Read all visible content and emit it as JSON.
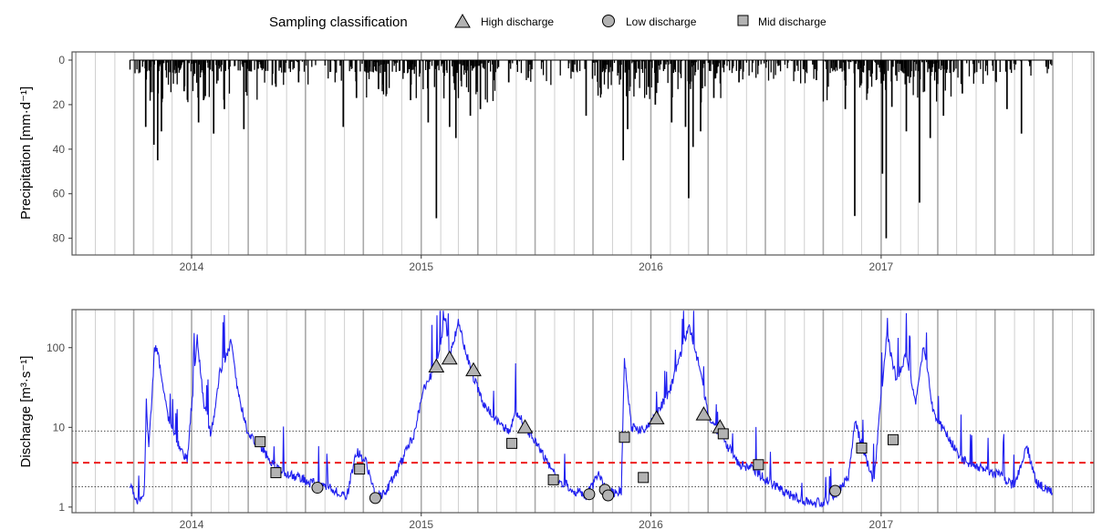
{
  "legend": {
    "title": "Sampling classification",
    "items": [
      {
        "label": "High discharge",
        "shape": "triangle"
      },
      {
        "label": "Low discharge",
        "shape": "circle"
      },
      {
        "label": "Mid discharge",
        "shape": "square"
      }
    ]
  },
  "chart_data": [
    {
      "type": "bar",
      "ylabel": "Precipitation [mm·d⁻¹]",
      "y_reversed": true,
      "ylim": [
        0,
        83
      ],
      "yticks": [
        0,
        20,
        40,
        60,
        80
      ],
      "xlim": [
        "2013-06-25",
        "2017-12-05"
      ],
      "xticks": [
        {
          "date": "2014-01-01",
          "label": "2014"
        },
        {
          "date": "2015-01-01",
          "label": "2015"
        },
        {
          "date": "2016-01-01",
          "label": "2016"
        },
        {
          "date": "2017-01-01",
          "label": "2017"
        }
      ],
      "data_range": [
        "2013-09-25",
        "2017-09-30"
      ],
      "peaks": [
        {
          "date": "2013-10-20",
          "value": 30
        },
        {
          "date": "2013-11-02",
          "value": 38
        },
        {
          "date": "2013-11-08",
          "value": 45
        },
        {
          "date": "2013-11-14",
          "value": 32
        },
        {
          "date": "2013-12-20",
          "value": 14
        },
        {
          "date": "2014-01-12",
          "value": 28
        },
        {
          "date": "2014-01-20",
          "value": 18
        },
        {
          "date": "2014-02-05",
          "value": 33
        },
        {
          "date": "2014-02-22",
          "value": 22
        },
        {
          "date": "2014-03-25",
          "value": 31
        },
        {
          "date": "2014-05-15",
          "value": 12
        },
        {
          "date": "2014-06-20",
          "value": 10
        },
        {
          "date": "2014-08-30",
          "value": 30
        },
        {
          "date": "2014-09-20",
          "value": 17
        },
        {
          "date": "2014-10-25",
          "value": 13
        },
        {
          "date": "2014-12-15",
          "value": 18
        },
        {
          "date": "2015-01-12",
          "value": 28
        },
        {
          "date": "2015-01-25",
          "value": 71
        },
        {
          "date": "2015-02-15",
          "value": 30
        },
        {
          "date": "2015-02-25",
          "value": 35
        },
        {
          "date": "2015-03-20",
          "value": 25
        },
        {
          "date": "2015-04-05",
          "value": 22
        },
        {
          "date": "2015-05-20",
          "value": 10
        },
        {
          "date": "2015-06-20",
          "value": 8
        },
        {
          "date": "2015-09-20",
          "value": 25
        },
        {
          "date": "2015-11-18",
          "value": 45
        },
        {
          "date": "2015-11-25",
          "value": 31
        },
        {
          "date": "2015-12-28",
          "value": 12
        },
        {
          "date": "2016-01-08",
          "value": 20
        },
        {
          "date": "2016-02-03",
          "value": 28
        },
        {
          "date": "2016-02-25",
          "value": 30
        },
        {
          "date": "2016-03-01",
          "value": 62
        },
        {
          "date": "2016-03-08",
          "value": 39
        },
        {
          "date": "2016-03-20",
          "value": 32
        },
        {
          "date": "2016-04-10",
          "value": 17
        },
        {
          "date": "2016-05-20",
          "value": 10
        },
        {
          "date": "2016-09-20",
          "value": 9
        },
        {
          "date": "2016-11-05",
          "value": 22
        },
        {
          "date": "2016-11-20",
          "value": 70
        },
        {
          "date": "2016-12-10",
          "value": 15
        },
        {
          "date": "2017-01-03",
          "value": 51
        },
        {
          "date": "2017-01-09",
          "value": 80
        },
        {
          "date": "2017-01-18",
          "value": 21
        },
        {
          "date": "2017-02-10",
          "value": 32
        },
        {
          "date": "2017-03-03",
          "value": 64
        },
        {
          "date": "2017-03-20",
          "value": 35
        },
        {
          "date": "2017-04-10",
          "value": 25
        },
        {
          "date": "2017-05-10",
          "value": 15
        },
        {
          "date": "2017-07-20",
          "value": 22
        },
        {
          "date": "2017-08-12",
          "value": 33
        }
      ],
      "grid": true
    },
    {
      "type": "line",
      "ylabel": "Discharge [m³·s⁻¹]",
      "yscale": "log",
      "ylim": [
        0.85,
        300
      ],
      "yticks": [
        1,
        10,
        100
      ],
      "xlim": [
        "2013-06-25",
        "2017-12-05"
      ],
      "xticks": [
        {
          "date": "2014-01-01",
          "label": "2014"
        },
        {
          "date": "2015-01-01",
          "label": "2015"
        },
        {
          "date": "2016-01-01",
          "label": "2016"
        },
        {
          "date": "2017-01-01",
          "label": "2017"
        }
      ],
      "hlines": [
        {
          "y": 3.6,
          "style": "dashed",
          "color": "#ee1c1c"
        },
        {
          "y": 9.0,
          "style": "dotted",
          "color": "#333333"
        },
        {
          "y": 1.8,
          "style": "dotted",
          "color": "#333333"
        }
      ],
      "series": [
        {
          "color": "#1f1fef",
          "points": [
            [
              "2013-09-25",
              2.0
            ],
            [
              "2013-10-01",
              1.5
            ],
            [
              "2013-10-10",
              1.1
            ],
            [
              "2013-10-18",
              1.7
            ],
            [
              "2013-10-21",
              22
            ],
            [
              "2013-10-25",
              5
            ],
            [
              "2013-11-03",
              95
            ],
            [
              "2013-11-07",
              103
            ],
            [
              "2013-11-15",
              40
            ],
            [
              "2013-11-25",
              13
            ],
            [
              "2013-12-05",
              8
            ],
            [
              "2013-12-15",
              5
            ],
            [
              "2013-12-25",
              4
            ],
            [
              "2014-01-10",
              130
            ],
            [
              "2014-01-20",
              20
            ],
            [
              "2014-02-01",
              8
            ],
            [
              "2014-02-15",
              50
            ],
            [
              "2014-03-05",
              120
            ],
            [
              "2014-03-15",
              30
            ],
            [
              "2014-04-01",
              8
            ],
            [
              "2014-04-20",
              6
            ],
            [
              "2014-05-15",
              3
            ],
            [
              "2014-06-10",
              2.5
            ],
            [
              "2014-07-15",
              2.0
            ],
            [
              "2014-08-10",
              1.7
            ],
            [
              "2014-09-05",
              1.4
            ],
            [
              "2014-09-20",
              5
            ],
            [
              "2014-10-05",
              3.8
            ],
            [
              "2014-10-20",
              1.3
            ],
            [
              "2014-11-05",
              1.5
            ],
            [
              "2014-11-25",
              3
            ],
            [
              "2014-12-20",
              8
            ],
            [
              "2015-01-05",
              30
            ],
            [
              "2015-01-25",
              62
            ],
            [
              "2015-02-08",
              240
            ],
            [
              "2015-02-15",
              80
            ],
            [
              "2015-03-01",
              200
            ],
            [
              "2015-03-20",
              55
            ],
            [
              "2015-04-10",
              20
            ],
            [
              "2015-05-01",
              12
            ],
            [
              "2015-05-20",
              9
            ],
            [
              "2015-06-01",
              16
            ],
            [
              "2015-06-20",
              9
            ],
            [
              "2015-07-10",
              5
            ],
            [
              "2015-08-05",
              2.3
            ],
            [
              "2015-09-01",
              1.6
            ],
            [
              "2015-09-20",
              1.4
            ],
            [
              "2015-10-10",
              2.5
            ],
            [
              "2015-10-25",
              1.5
            ],
            [
              "2015-11-15",
              1.6
            ],
            [
              "2015-11-20",
              75
            ],
            [
              "2015-12-01",
              10
            ],
            [
              "2015-12-20",
              9
            ],
            [
              "2016-01-10",
              14
            ],
            [
              "2016-02-01",
              30
            ],
            [
              "2016-02-20",
              100
            ],
            [
              "2016-03-02",
              180
            ],
            [
              "2016-03-20",
              50
            ],
            [
              "2016-04-01",
              14
            ],
            [
              "2016-04-15",
              9
            ],
            [
              "2016-05-01",
              6
            ],
            [
              "2016-05-20",
              3.5
            ],
            [
              "2016-06-10",
              3.0
            ],
            [
              "2016-07-10",
              2.0
            ],
            [
              "2016-08-10",
              1.4
            ],
            [
              "2016-09-10",
              1.1
            ],
            [
              "2016-10-10",
              1.2
            ],
            [
              "2016-10-25",
              1.6
            ],
            [
              "2016-11-10",
              2.5
            ],
            [
              "2016-11-20",
              12
            ],
            [
              "2016-12-05",
              5
            ],
            [
              "2016-12-20",
              2
            ],
            [
              "2017-01-10",
              150
            ],
            [
              "2017-01-25",
              40
            ],
            [
              "2017-02-10",
              80
            ],
            [
              "2017-02-25",
              20
            ],
            [
              "2017-03-10",
              110
            ],
            [
              "2017-03-25",
              15
            ],
            [
              "2017-04-15",
              8
            ],
            [
              "2017-05-10",
              4
            ],
            [
              "2017-06-10",
              3
            ],
            [
              "2017-07-10",
              2.5
            ],
            [
              "2017-08-01",
              1.8
            ],
            [
              "2017-08-20",
              6
            ],
            [
              "2017-09-05",
              2
            ],
            [
              "2017-09-30",
              1.5
            ]
          ]
        }
      ],
      "samples": [
        {
          "date": "2014-04-20",
          "value": 6.6,
          "class": "Mid discharge"
        },
        {
          "date": "2014-05-15",
          "value": 2.7,
          "class": "Mid discharge"
        },
        {
          "date": "2014-07-20",
          "value": 1.75,
          "class": "Low discharge"
        },
        {
          "date": "2014-09-25",
          "value": 3.0,
          "class": "Mid discharge"
        },
        {
          "date": "2014-10-20",
          "value": 1.3,
          "class": "Low discharge"
        },
        {
          "date": "2015-01-25",
          "value": 58,
          "class": "High discharge"
        },
        {
          "date": "2015-02-15",
          "value": 73,
          "class": "High discharge"
        },
        {
          "date": "2015-03-25",
          "value": 52,
          "class": "High discharge"
        },
        {
          "date": "2015-05-25",
          "value": 6.3,
          "class": "Mid discharge"
        },
        {
          "date": "2015-06-15",
          "value": 10,
          "class": "High discharge"
        },
        {
          "date": "2015-07-30",
          "value": 2.2,
          "class": "Mid discharge"
        },
        {
          "date": "2015-09-25",
          "value": 1.45,
          "class": "Low discharge"
        },
        {
          "date": "2015-10-20",
          "value": 1.65,
          "class": "Low discharge"
        },
        {
          "date": "2015-10-25",
          "value": 1.4,
          "class": "Low discharge"
        },
        {
          "date": "2015-11-20",
          "value": 7.5,
          "class": "Mid discharge"
        },
        {
          "date": "2015-12-20",
          "value": 2.35,
          "class": "Mid discharge"
        },
        {
          "date": "2016-01-10",
          "value": 13,
          "class": "High discharge"
        },
        {
          "date": "2016-03-25",
          "value": 14.5,
          "class": "High discharge"
        },
        {
          "date": "2016-04-20",
          "value": 10,
          "class": "High discharge"
        },
        {
          "date": "2016-04-25",
          "value": 8.3,
          "class": "Mid discharge"
        },
        {
          "date": "2016-06-20",
          "value": 3.4,
          "class": "Mid discharge"
        },
        {
          "date": "2016-10-20",
          "value": 1.6,
          "class": "Low discharge"
        },
        {
          "date": "2016-12-01",
          "value": 5.5,
          "class": "Mid discharge"
        },
        {
          "date": "2017-01-20",
          "value": 7.0,
          "class": "Mid discharge"
        }
      ],
      "grid": true
    }
  ]
}
